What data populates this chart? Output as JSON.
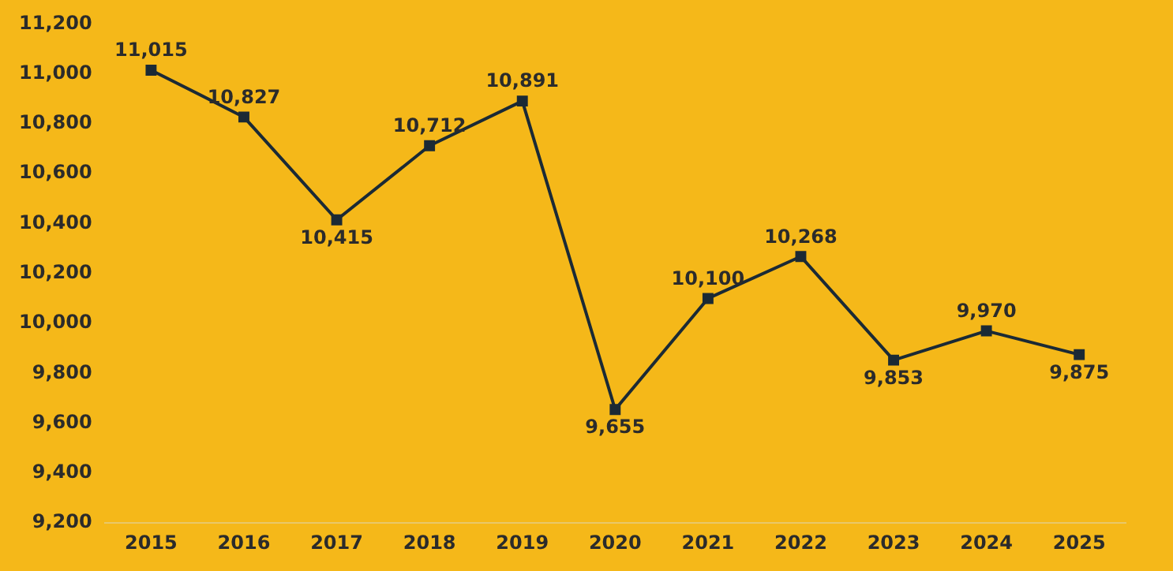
{
  "chart_data": {
    "type": "line",
    "categories": [
      "2015",
      "2016",
      "2017",
      "2018",
      "2019",
      "2020",
      "2021",
      "2022",
      "2023",
      "2024",
      "2025"
    ],
    "series": [
      {
        "color": "#1b2a35",
        "values": [
          11015,
          10827,
          10415,
          10712,
          10891,
          9655,
          10100,
          10268,
          9853,
          9970,
          9875
        ],
        "value_labels": [
          "11,015",
          "10,827",
          "10,415",
          "10,712",
          "10,891",
          "9,655",
          "10,100",
          "10,268",
          "9,853",
          "9,970",
          "9,875"
        ]
      }
    ],
    "ylim": [
      9200,
      11200
    ],
    "yticks": [
      {
        "value": 9200,
        "label": "9,200"
      },
      {
        "value": 9400,
        "label": "9,400"
      },
      {
        "value": 9600,
        "label": "9,600"
      },
      {
        "value": 9800,
        "label": "9,800"
      },
      {
        "value": 10000,
        "label": "10,000"
      },
      {
        "value": 10200,
        "label": "10,200"
      },
      {
        "value": 10400,
        "label": "10,400"
      },
      {
        "value": 10600,
        "label": "10,600"
      },
      {
        "value": 10800,
        "label": "10,800"
      },
      {
        "value": 11000,
        "label": "11,000"
      },
      {
        "value": 11200,
        "label": "11,200"
      }
    ],
    "grid": false,
    "legend": false,
    "marker": "square",
    "line_style": "solid"
  }
}
